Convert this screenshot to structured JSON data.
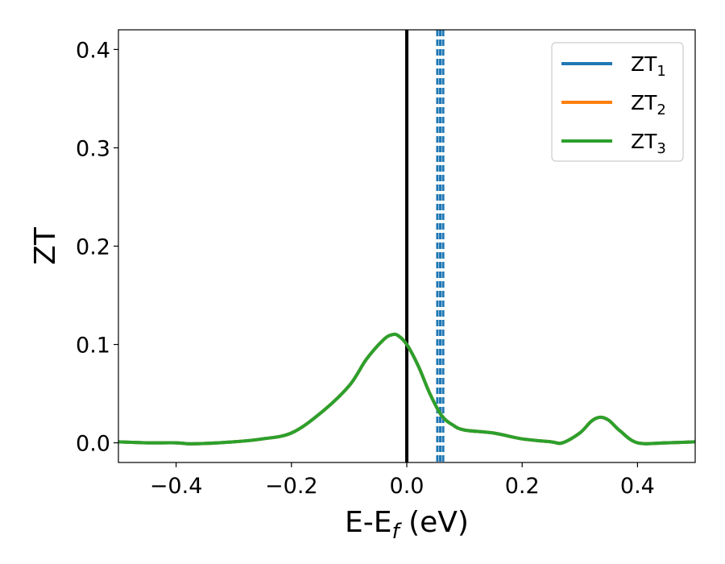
{
  "chart_data": {
    "type": "line",
    "xlabel": {
      "main": "E-E",
      "sub": "f",
      "unit": " (eV)"
    },
    "ylabel": "ZT",
    "xlim": [
      -0.5,
      0.5
    ],
    "ylim": [
      -0.02,
      0.42
    ],
    "x_ticks": [
      -0.4,
      -0.2,
      0.0,
      0.2,
      0.4
    ],
    "x_tick_labels": [
      "−0.4",
      "−0.2",
      "0.0",
      "0.2",
      "0.4"
    ],
    "y_ticks": [
      0.0,
      0.1,
      0.2,
      0.3,
      0.4
    ],
    "y_tick_labels": [
      "0.0",
      "0.1",
      "0.2",
      "0.3",
      "0.4"
    ],
    "legend_position": "top-right",
    "series": [
      {
        "name": "ZT",
        "name_sub": "1",
        "color": "#1f77b4",
        "x": [
          -0.5,
          -0.45,
          -0.4,
          -0.37,
          -0.3,
          -0.25,
          -0.2,
          -0.15,
          -0.1,
          -0.07,
          -0.04,
          -0.025,
          -0.015,
          0.0,
          0.02,
          0.04,
          0.06,
          0.08,
          0.1,
          0.15,
          0.2,
          0.25,
          0.27,
          0.3,
          0.32,
          0.335,
          0.35,
          0.37,
          0.4,
          0.45,
          0.5
        ],
        "y": [
          0.001,
          0.0,
          0.0,
          -0.001,
          0.001,
          0.004,
          0.01,
          0.03,
          0.058,
          0.085,
          0.105,
          0.11,
          0.109,
          0.1,
          0.078,
          0.05,
          0.028,
          0.018,
          0.013,
          0.01,
          0.004,
          0.001,
          0.0,
          0.01,
          0.022,
          0.026,
          0.023,
          0.012,
          0.0,
          0.0,
          0.001
        ]
      },
      {
        "name": "ZT",
        "name_sub": "2",
        "color": "#ff7f0e",
        "x": [
          -0.5,
          -0.45,
          -0.4,
          -0.37,
          -0.3,
          -0.25,
          -0.2,
          -0.15,
          -0.1,
          -0.07,
          -0.04,
          -0.025,
          -0.015,
          0.0,
          0.02,
          0.04,
          0.06,
          0.08,
          0.1,
          0.15,
          0.2,
          0.25,
          0.27,
          0.3,
          0.32,
          0.335,
          0.35,
          0.37,
          0.4,
          0.45,
          0.5
        ],
        "y": [
          0.001,
          0.0,
          0.0,
          -0.001,
          0.001,
          0.004,
          0.01,
          0.03,
          0.058,
          0.085,
          0.105,
          0.11,
          0.109,
          0.1,
          0.078,
          0.05,
          0.028,
          0.018,
          0.013,
          0.01,
          0.004,
          0.001,
          0.0,
          0.01,
          0.022,
          0.026,
          0.023,
          0.012,
          0.0,
          0.0,
          0.001
        ]
      },
      {
        "name": "ZT",
        "name_sub": "3",
        "color": "#2ca02c",
        "x": [
          -0.5,
          -0.45,
          -0.4,
          -0.37,
          -0.3,
          -0.25,
          -0.2,
          -0.15,
          -0.1,
          -0.07,
          -0.04,
          -0.025,
          -0.015,
          0.0,
          0.02,
          0.04,
          0.06,
          0.08,
          0.1,
          0.15,
          0.2,
          0.25,
          0.27,
          0.3,
          0.32,
          0.335,
          0.35,
          0.37,
          0.4,
          0.45,
          0.5
        ],
        "y": [
          0.001,
          0.0,
          0.0,
          -0.001,
          0.001,
          0.004,
          0.01,
          0.03,
          0.058,
          0.085,
          0.105,
          0.11,
          0.109,
          0.1,
          0.078,
          0.05,
          0.028,
          0.018,
          0.013,
          0.01,
          0.004,
          0.001,
          0.0,
          0.01,
          0.022,
          0.026,
          0.023,
          0.012,
          0.0,
          0.0,
          0.001
        ]
      }
    ],
    "vertical_lines": [
      {
        "x": 0.0,
        "color": "#000000",
        "style": "solid"
      },
      {
        "x": 0.053,
        "color": "#1f77b4",
        "style": "dashed"
      },
      {
        "x": 0.058,
        "color": "#1f77b4",
        "style": "dashed"
      },
      {
        "x": 0.063,
        "color": "#1f77b4",
        "style": "dashed"
      }
    ]
  }
}
